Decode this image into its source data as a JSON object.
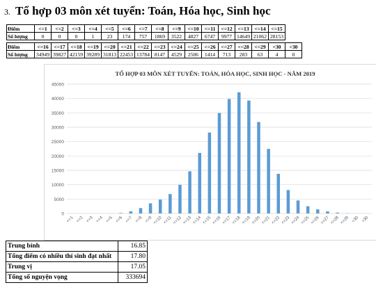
{
  "heading": {
    "number": "3.",
    "title": "Tổ hợp 03 môn xét tuyển: Toán, Hóa học, Sinh học"
  },
  "table1": {
    "row_label_score": "Điểm",
    "row_label_count": "Số lượng",
    "scores": [
      "<=1",
      "<=2",
      "<=3",
      "<=4",
      "<=5",
      "<=6",
      "<=7",
      "<=8",
      "<=9",
      "<=10",
      "<=11",
      "<=12",
      "<=13",
      "<=14",
      "<=15"
    ],
    "counts": [
      "0",
      "0",
      "0",
      "1",
      "23",
      "174",
      "757",
      "1869",
      "3522",
      "4827",
      "6747",
      "9977",
      "14649",
      "21062",
      "28153"
    ]
  },
  "table2": {
    "row_label_score": "Điểm",
    "row_label_count": "Số lượng",
    "scores": [
      "<=16",
      "<=17",
      "<=18",
      "<=19",
      "<=20",
      "<=21",
      "<=22",
      "<=23",
      "<=24",
      "<=25",
      "<=26",
      "<=27",
      "<=28",
      "<=29",
      "<30",
      "=30"
    ],
    "counts": [
      "34949",
      "39827",
      "42159",
      "39289",
      "31813",
      "22453",
      "13784",
      "8147",
      "4529",
      "2506",
      "1414",
      "713",
      "283",
      "63",
      "4",
      "0"
    ]
  },
  "chart_data": {
    "type": "bar",
    "title": "TỔ HỢP 03 MÔN XÉT TUYỂN: TOÁN, HÓA HỌC, SINH HỌC - NĂM 2019",
    "xlabel": "",
    "ylabel": "",
    "categories": [
      "<=1",
      "<=2",
      "<=3",
      "<=4",
      "<=5",
      "<=6",
      "<=7",
      "<=8",
      "<=9",
      "<=10",
      "<=11",
      "<=12",
      "<=13",
      "<=14",
      "<=15",
      "<=16",
      "<=17",
      "<=18",
      "<=19",
      "<=20",
      "<=21",
      "<=22",
      "<=23",
      "<=24",
      "<=25",
      "<=26",
      "<=27",
      "<=28",
      "<=29",
      "<30",
      "=30"
    ],
    "values": [
      0,
      0,
      0,
      1,
      23,
      174,
      757,
      1869,
      3522,
      4827,
      6747,
      9977,
      14649,
      21062,
      28153,
      34949,
      39827,
      42159,
      39289,
      31813,
      22453,
      13784,
      8147,
      4529,
      2506,
      1414,
      713,
      283,
      63,
      4,
      0
    ],
    "yticks": [
      0,
      5000,
      10000,
      15000,
      20000,
      25000,
      30000,
      35000,
      40000,
      45000
    ],
    "ylim": [
      0,
      45000
    ],
    "grid": true,
    "legend": "none",
    "bar_color": "#5b9bd5"
  },
  "stats": [
    {
      "label": "Trung bình",
      "value": "16.85"
    },
    {
      "label": "Tổng điểm có nhiều thí sinh đạt nhất",
      "value": "17.80"
    },
    {
      "label": "Trung vị",
      "value": "17.05"
    },
    {
      "label": "Tổng số nguyện vọng",
      "value": "333694"
    }
  ]
}
